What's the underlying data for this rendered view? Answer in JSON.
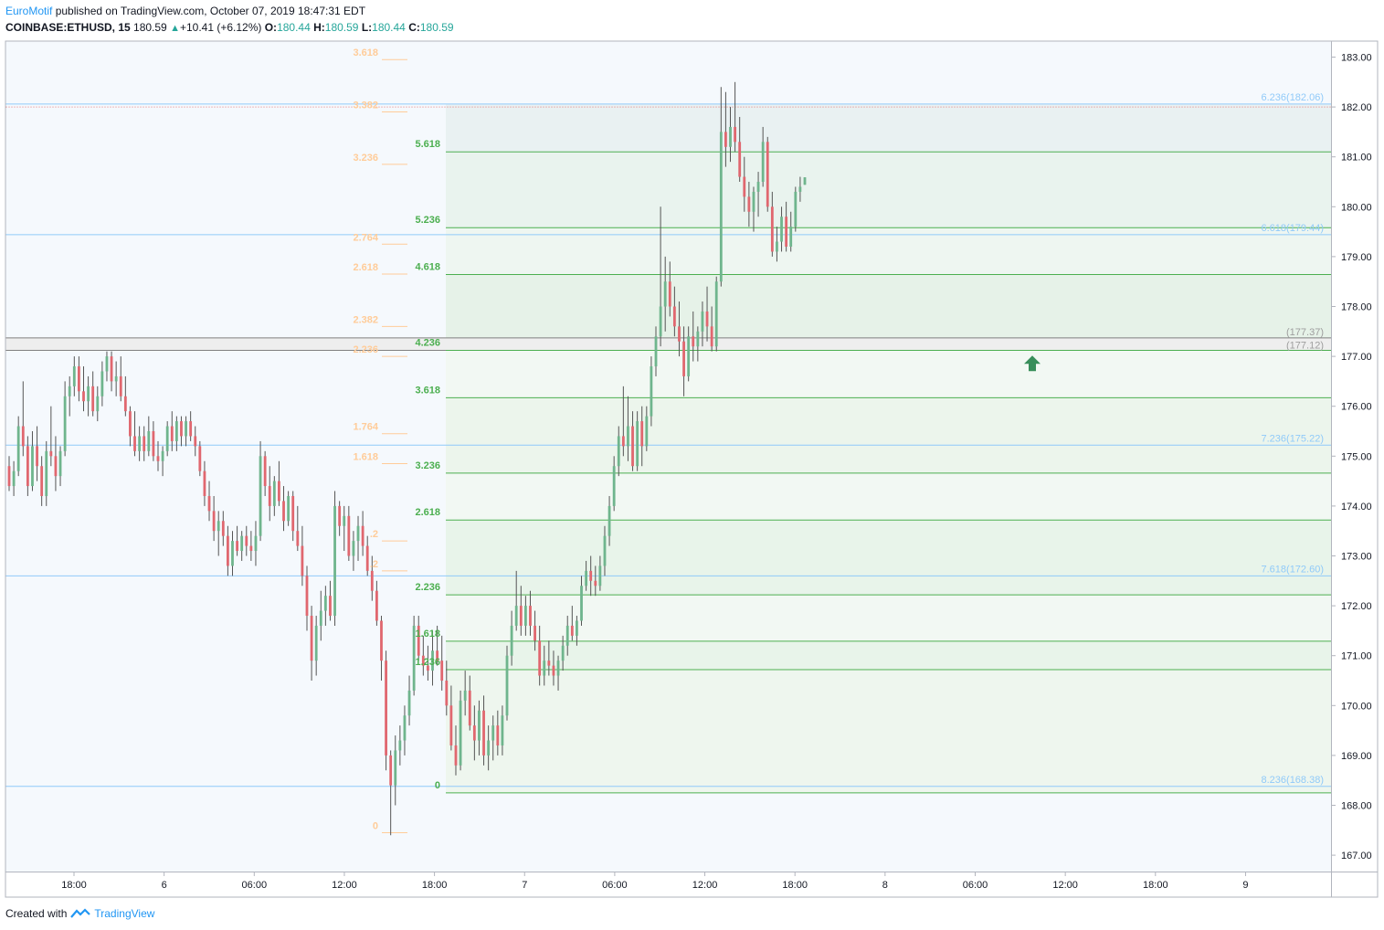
{
  "header": {
    "author": "EuroMotif",
    "published_text": "published on TradingView.com, October 07, 2019 18:47:31 EDT",
    "symbol": "COINBASE:ETHUSD, 15",
    "last": "180.59",
    "change_arrow": "▲",
    "change": "+10.41 (+6.12%)",
    "o_label": "O:",
    "o": "180.44",
    "h_label": "H:",
    "h": "180.59",
    "l_label": "L:",
    "l": "180.44",
    "c_label": "C:",
    "c": "180.59"
  },
  "footer": {
    "created_with": "Created with",
    "brand": "TradingView"
  },
  "colors": {
    "up": "#26a69a",
    "up_candle": "#6fb58d",
    "down_candle": "#e0676f",
    "fib_green": "#4caf50",
    "fib_orange": "#ffcc99",
    "fib_blue": "#90caf9",
    "arrow": "#388e5a"
  },
  "chart_data": {
    "type": "candlestick",
    "ylim": [
      166.7,
      183.4
    ],
    "y_ticks": [
      "167.00",
      "168.00",
      "169.00",
      "170.00",
      "171.00",
      "172.00",
      "173.00",
      "174.00",
      "175.00",
      "176.00",
      "177.00",
      "178.00",
      "179.00",
      "180.00",
      "181.00",
      "182.00",
      "183.00"
    ],
    "x_ticks": [
      "18:00",
      "6",
      "06:00",
      "12:00",
      "18:00",
      "7",
      "06:00",
      "12:00",
      "18:00",
      "8",
      "06:00",
      "12:00",
      "18:00",
      "9"
    ],
    "fib_green_levels": [
      {
        "label": "0",
        "price": 168.25
      },
      {
        "label": "1.236",
        "price": 170.72
      },
      {
        "label": "1.618",
        "price": 171.29
      },
      {
        "label": "2.236",
        "price": 172.22
      },
      {
        "label": "2.618",
        "price": 173.72
      },
      {
        "label": "3.236",
        "price": 174.66
      },
      {
        "label": "3.618",
        "price": 176.17
      },
      {
        "label": "4.236",
        "price": 177.12
      },
      {
        "label": "4.618",
        "price": 178.64
      },
      {
        "label": "5.236",
        "price": 179.58
      },
      {
        "label": "5.618",
        "price": 181.1
      }
    ],
    "fib_green_top": 182.05,
    "fib_orange_levels": [
      {
        "label": "0",
        "price": 167.45
      },
      {
        "label": ".2",
        "price": 172.7
      },
      {
        "label": ".2",
        "price": 173.3
      },
      {
        "label": "1.618",
        "price": 174.85
      },
      {
        "label": "1.764",
        "price": 175.45
      },
      {
        "label": "2.236",
        "price": 177.0
      },
      {
        "label": "2.382",
        "price": 177.6
      },
      {
        "label": "2.618",
        "price": 178.65
      },
      {
        "label": "2.764",
        "price": 179.25
      },
      {
        "label": "3.236",
        "price": 180.85
      },
      {
        "label": "3.382",
        "price": 181.9
      },
      {
        "label": "3.618",
        "price": 182.95
      }
    ],
    "fib_blue_levels": [
      {
        "label": "6.236(182.06)",
        "price": 182.06
      },
      {
        "label": "6.618(179.44)",
        "price": 179.44
      },
      {
        "label": "7.236(175.22)",
        "price": 175.22
      },
      {
        "label": "7.618(172.60)",
        "price": 172.6
      },
      {
        "label": "8.236(168.38)",
        "price": 168.38
      }
    ],
    "gray_levels": [
      {
        "label": "(177.37)",
        "price": 177.37
      },
      {
        "label": "(177.12)",
        "price": 177.12
      }
    ],
    "candles": [
      [
        174.8,
        175.0,
        174.3,
        174.4
      ],
      [
        174.4,
        174.9,
        174.2,
        174.7
      ],
      [
        174.7,
        175.8,
        174.6,
        175.6
      ],
      [
        175.6,
        176.5,
        175.0,
        175.2
      ],
      [
        175.2,
        175.4,
        174.2,
        174.4
      ],
      [
        174.4,
        175.5,
        174.3,
        175.2
      ],
      [
        175.2,
        175.6,
        174.5,
        174.8
      ],
      [
        174.8,
        175.0,
        174.0,
        174.2
      ],
      [
        174.2,
        175.3,
        174.0,
        175.1
      ],
      [
        175.1,
        176.0,
        174.8,
        175.0
      ],
      [
        175.0,
        175.4,
        174.3,
        174.6
      ],
      [
        174.6,
        175.2,
        174.4,
        175.1
      ],
      [
        175.1,
        176.5,
        175.0,
        176.2
      ],
      [
        176.2,
        176.6,
        175.8,
        176.4
      ],
      [
        176.4,
        177.0,
        176.2,
        176.8
      ],
      [
        176.8,
        177.0,
        176.1,
        176.3
      ],
      [
        176.3,
        176.8,
        175.9,
        176.1
      ],
      [
        176.1,
        176.6,
        175.8,
        176.4
      ],
      [
        176.4,
        176.7,
        175.8,
        175.9
      ],
      [
        175.9,
        176.4,
        175.7,
        176.2
      ],
      [
        176.2,
        176.9,
        176.0,
        176.7
      ],
      [
        176.7,
        177.1,
        176.5,
        177.0
      ],
      [
        177.0,
        177.1,
        176.3,
        176.5
      ],
      [
        176.5,
        176.9,
        176.2,
        176.6
      ],
      [
        176.6,
        177.0,
        176.1,
        176.2
      ],
      [
        176.2,
        176.6,
        175.8,
        175.9
      ],
      [
        175.9,
        176.0,
        175.2,
        175.4
      ],
      [
        175.4,
        175.9,
        175.0,
        175.1
      ],
      [
        175.1,
        175.6,
        174.9,
        175.4
      ],
      [
        175.4,
        175.6,
        174.9,
        175.1
      ],
      [
        175.1,
        175.8,
        175.0,
        175.5
      ],
      [
        175.5,
        175.7,
        174.9,
        175.0
      ],
      [
        175.0,
        175.3,
        174.7,
        174.9
      ],
      [
        174.9,
        175.2,
        174.6,
        175.1
      ],
      [
        175.1,
        175.7,
        175.0,
        175.6
      ],
      [
        175.6,
        175.9,
        175.1,
        175.3
      ],
      [
        175.3,
        175.8,
        175.1,
        175.7
      ],
      [
        175.7,
        175.8,
        175.2,
        175.4
      ],
      [
        175.4,
        175.8,
        175.2,
        175.7
      ],
      [
        175.7,
        175.9,
        175.3,
        175.4
      ],
      [
        175.4,
        175.6,
        175.0,
        175.2
      ],
      [
        175.2,
        175.3,
        174.6,
        174.7
      ],
      [
        174.7,
        174.9,
        174.0,
        174.2
      ],
      [
        174.2,
        174.5,
        173.7,
        173.9
      ],
      [
        173.9,
        174.2,
        173.3,
        173.5
      ],
      [
        173.5,
        173.9,
        173.0,
        173.7
      ],
      [
        173.7,
        173.9,
        173.2,
        173.4
      ],
      [
        173.4,
        173.6,
        172.6,
        172.8
      ],
      [
        172.8,
        173.5,
        172.6,
        173.3
      ],
      [
        173.3,
        173.6,
        173.0,
        173.1
      ],
      [
        173.1,
        173.5,
        172.9,
        173.4
      ],
      [
        173.4,
        173.6,
        173.0,
        173.2
      ],
      [
        173.2,
        173.5,
        172.9,
        173.1
      ],
      [
        173.1,
        173.7,
        172.8,
        173.4
      ],
      [
        173.4,
        175.3,
        173.3,
        175.0
      ],
      [
        175.0,
        175.1,
        174.2,
        174.4
      ],
      [
        174.4,
        174.8,
        173.7,
        174.0
      ],
      [
        174.0,
        174.6,
        173.8,
        174.5
      ],
      [
        174.5,
        174.9,
        174.0,
        174.1
      ],
      [
        174.1,
        174.4,
        173.5,
        173.7
      ],
      [
        173.7,
        174.3,
        173.6,
        174.2
      ],
      [
        174.2,
        174.3,
        173.3,
        173.5
      ],
      [
        173.5,
        174.0,
        173.1,
        173.2
      ],
      [
        173.2,
        173.6,
        172.4,
        172.6
      ],
      [
        172.6,
        172.8,
        171.5,
        171.8
      ],
      [
        171.8,
        172.0,
        170.5,
        170.9
      ],
      [
        170.9,
        171.8,
        170.6,
        171.6
      ],
      [
        171.6,
        172.3,
        171.3,
        171.9
      ],
      [
        171.9,
        172.4,
        171.6,
        172.2
      ],
      [
        172.2,
        172.5,
        171.7,
        171.8
      ],
      [
        171.8,
        174.3,
        171.6,
        174.0
      ],
      [
        174.0,
        174.1,
        173.4,
        173.6
      ],
      [
        173.6,
        174.0,
        173.1,
        173.8
      ],
      [
        173.8,
        174.0,
        172.9,
        173.0
      ],
      [
        173.0,
        173.5,
        172.7,
        173.3
      ],
      [
        173.3,
        173.8,
        172.9,
        173.6
      ],
      [
        173.6,
        173.9,
        173.0,
        173.2
      ],
      [
        173.2,
        173.4,
        172.6,
        172.7
      ],
      [
        172.7,
        173.0,
        172.1,
        172.3
      ],
      [
        172.3,
        172.5,
        171.6,
        171.7
      ],
      [
        171.7,
        171.8,
        170.5,
        170.9
      ],
      [
        170.9,
        171.1,
        168.7,
        169.0
      ],
      [
        169.0,
        169.1,
        167.4,
        168.4
      ],
      [
        168.4,
        169.4,
        168.0,
        169.1
      ],
      [
        169.1,
        169.6,
        168.8,
        169.3
      ],
      [
        169.3,
        170.0,
        169.0,
        169.8
      ],
      [
        169.8,
        170.6,
        169.6,
        170.3
      ],
      [
        170.3,
        171.8,
        170.2,
        171.6
      ],
      [
        171.6,
        171.8,
        170.9,
        171.0
      ],
      [
        171.0,
        171.4,
        170.6,
        170.8
      ],
      [
        170.8,
        171.2,
        170.5,
        170.7
      ],
      [
        170.7,
        171.5,
        170.4,
        171.1
      ],
      [
        171.1,
        171.6,
        170.8,
        170.9
      ],
      [
        170.9,
        171.4,
        170.3,
        170.5
      ],
      [
        170.5,
        170.9,
        169.8,
        170.0
      ],
      [
        170.0,
        170.4,
        169.1,
        169.2
      ],
      [
        169.2,
        169.6,
        168.6,
        168.8
      ],
      [
        168.8,
        170.3,
        168.7,
        170.1
      ],
      [
        170.1,
        170.7,
        169.8,
        170.3
      ],
      [
        170.3,
        170.6,
        169.5,
        169.6
      ],
      [
        169.6,
        170.0,
        168.9,
        169.3
      ],
      [
        169.3,
        170.1,
        169.0,
        169.9
      ],
      [
        169.9,
        170.2,
        168.8,
        169.0
      ],
      [
        169.0,
        169.6,
        168.7,
        169.3
      ],
      [
        169.3,
        169.8,
        168.9,
        169.6
      ],
      [
        169.6,
        169.9,
        169.0,
        169.2
      ],
      [
        169.2,
        170.0,
        169.0,
        169.8
      ],
      [
        169.8,
        171.2,
        169.7,
        171.0
      ],
      [
        171.0,
        171.9,
        170.8,
        171.6
      ],
      [
        171.6,
        172.7,
        171.5,
        172.0
      ],
      [
        172.0,
        172.4,
        171.4,
        171.6
      ],
      [
        171.6,
        172.2,
        171.4,
        172.0
      ],
      [
        172.0,
        172.3,
        171.4,
        171.6
      ],
      [
        171.6,
        171.9,
        171.1,
        171.3
      ],
      [
        171.3,
        171.6,
        170.4,
        170.6
      ],
      [
        170.6,
        171.2,
        170.4,
        170.9
      ],
      [
        170.9,
        171.3,
        170.6,
        170.8
      ],
      [
        170.8,
        171.1,
        170.4,
        170.6
      ],
      [
        170.6,
        171.0,
        170.3,
        170.9
      ],
      [
        170.9,
        171.4,
        170.7,
        171.2
      ],
      [
        171.2,
        171.8,
        171.0,
        171.6
      ],
      [
        171.6,
        172.0,
        171.3,
        171.4
      ],
      [
        171.4,
        171.8,
        171.2,
        171.7
      ],
      [
        171.7,
        172.6,
        171.6,
        172.4
      ],
      [
        172.4,
        172.9,
        172.3,
        172.7
      ],
      [
        172.7,
        173.0,
        172.2,
        172.5
      ],
      [
        172.5,
        172.8,
        172.2,
        172.4
      ],
      [
        172.4,
        173.0,
        172.3,
        172.8
      ],
      [
        172.8,
        173.6,
        172.6,
        173.4
      ],
      [
        173.4,
        174.2,
        173.2,
        174.0
      ],
      [
        174.0,
        175.0,
        173.9,
        174.8
      ],
      [
        174.8,
        175.6,
        174.6,
        175.4
      ],
      [
        175.4,
        176.4,
        175.0,
        175.2
      ],
      [
        175.2,
        176.2,
        174.9,
        175.6
      ],
      [
        175.6,
        175.9,
        174.7,
        174.8
      ],
      [
        174.8,
        175.9,
        174.7,
        175.7
      ],
      [
        175.7,
        176.0,
        174.8,
        175.2
      ],
      [
        175.2,
        176.0,
        175.1,
        175.8
      ],
      [
        175.8,
        177.0,
        175.6,
        176.8
      ],
      [
        176.8,
        177.6,
        176.6,
        177.4
      ],
      [
        177.4,
        180.0,
        177.2,
        178.0
      ],
      [
        178.0,
        179.0,
        177.5,
        178.5
      ],
      [
        178.5,
        178.9,
        177.8,
        178.0
      ],
      [
        178.0,
        178.4,
        177.4,
        177.6
      ],
      [
        177.6,
        178.1,
        177.0,
        177.3
      ],
      [
        177.3,
        177.6,
        176.2,
        176.6
      ],
      [
        176.6,
        177.6,
        176.5,
        177.4
      ],
      [
        177.4,
        177.9,
        176.9,
        177.2
      ],
      [
        177.2,
        177.6,
        176.9,
        177.5
      ],
      [
        177.5,
        178.1,
        177.2,
        177.9
      ],
      [
        177.9,
        178.4,
        177.3,
        177.6
      ],
      [
        177.6,
        178.0,
        177.1,
        177.2
      ],
      [
        177.2,
        178.6,
        177.1,
        178.5
      ],
      [
        178.5,
        182.4,
        178.4,
        181.5
      ],
      [
        181.5,
        182.3,
        180.8,
        181.2
      ],
      [
        181.2,
        182.0,
        180.9,
        181.6
      ],
      [
        181.6,
        182.5,
        181.1,
        181.3
      ],
      [
        181.3,
        181.8,
        180.5,
        180.6
      ],
      [
        180.6,
        181.0,
        179.9,
        180.2
      ],
      [
        180.2,
        180.5,
        179.6,
        179.9
      ],
      [
        179.9,
        180.4,
        179.5,
        180.3
      ],
      [
        180.3,
        180.7,
        179.8,
        180.5
      ],
      [
        180.5,
        181.6,
        180.4,
        181.3
      ],
      [
        181.3,
        181.4,
        179.9,
        180.0
      ],
      [
        180.0,
        180.3,
        179.0,
        179.1
      ],
      [
        179.1,
        179.6,
        178.9,
        179.3
      ],
      [
        179.3,
        180.0,
        179.1,
        179.8
      ],
      [
        179.8,
        180.1,
        179.1,
        179.2
      ],
      [
        179.2,
        179.9,
        179.1,
        179.6
      ],
      [
        179.6,
        180.4,
        179.5,
        180.3
      ],
      [
        180.3,
        180.6,
        180.1,
        180.4
      ],
      [
        180.44,
        180.59,
        180.44,
        180.59
      ]
    ],
    "arrow_marker": {
      "direction": "up",
      "price": 176.85
    }
  }
}
